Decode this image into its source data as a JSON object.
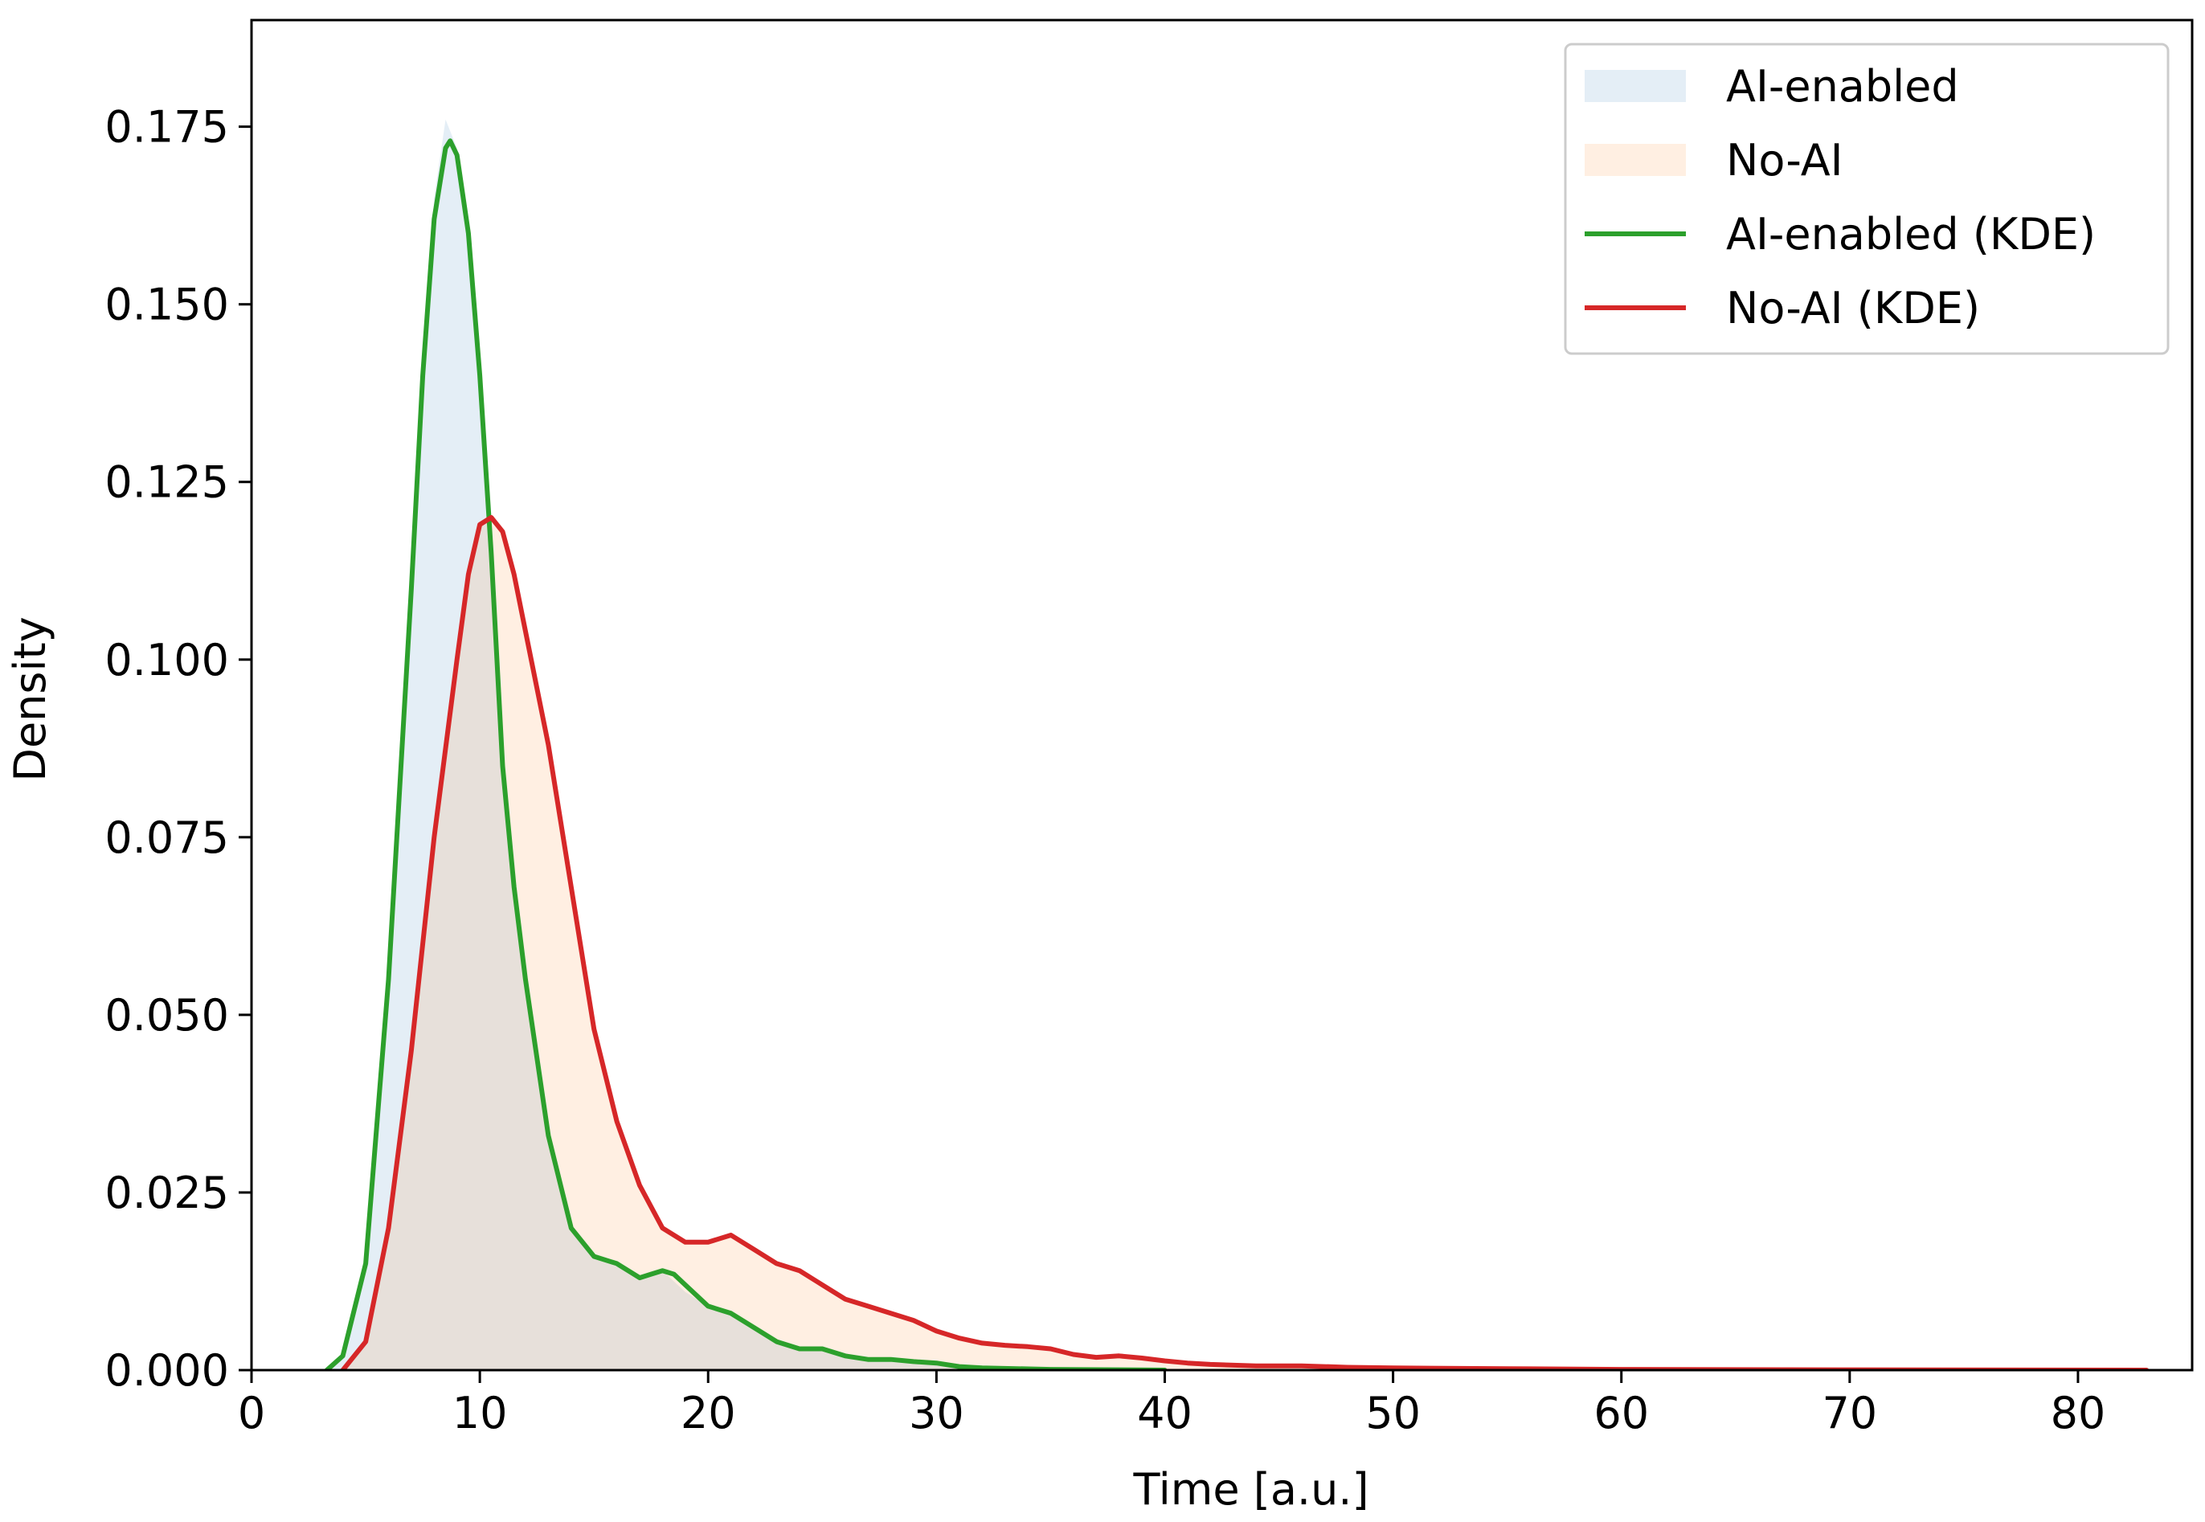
{
  "chart_data": {
    "type": "area",
    "xlabel": "Time [a.u.]",
    "ylabel": "Density",
    "xlim": [
      0,
      85
    ],
    "ylim": [
      0,
      0.19
    ],
    "xticks": [
      0,
      10,
      20,
      30,
      40,
      50,
      60,
      70,
      80
    ],
    "xtick_labels": [
      "0",
      "10",
      "20",
      "30",
      "40",
      "50",
      "60",
      "70",
      "80"
    ],
    "yticks": [
      0,
      0.025,
      0.05,
      0.075,
      0.1,
      0.125,
      0.15,
      0.175
    ],
    "ytick_labels": [
      "0.000",
      "0.025",
      "0.050",
      "0.075",
      "0.100",
      "0.125",
      "0.150",
      "0.175"
    ],
    "grid": false,
    "legend_position": "top-right",
    "series": [
      {
        "name": "AI-enabled",
        "kind": "histogram",
        "color": "#1f77b4",
        "x": [
          3.5,
          4,
          5,
          6,
          7,
          7.5,
          8,
          8.5,
          9,
          9.5,
          10,
          10.5,
          11,
          12,
          13,
          14,
          15,
          16,
          17,
          18,
          19,
          20,
          21,
          22,
          23,
          24,
          25,
          26,
          27,
          28,
          29,
          30,
          31,
          32,
          35,
          40
        ],
        "y": [
          0,
          0.002,
          0.015,
          0.055,
          0.11,
          0.14,
          0.165,
          0.176,
          0.172,
          0.16,
          0.14,
          0.115,
          0.085,
          0.055,
          0.033,
          0.02,
          0.016,
          0.015,
          0.013,
          0.014,
          0.011,
          0.009,
          0.008,
          0.006,
          0.004,
          0.003,
          0.003,
          0.002,
          0.0015,
          0.0015,
          0.0012,
          0.001,
          0.0005,
          0.0003,
          0.0001,
          0
        ]
      },
      {
        "name": "No-AI",
        "kind": "histogram",
        "color": "#ff7f0e",
        "x": [
          4,
          5,
          6,
          7,
          8,
          9,
          9.5,
          10,
          10.5,
          11,
          11.5,
          12,
          13,
          14,
          15,
          16,
          17,
          18,
          19,
          20,
          21,
          22,
          23,
          24,
          25,
          26,
          27,
          28,
          29,
          30,
          31,
          32,
          33,
          34,
          35,
          36,
          37,
          38,
          39,
          40,
          41,
          42,
          44,
          46,
          48,
          50,
          55,
          60,
          70,
          83
        ],
        "y": [
          0,
          0.004,
          0.02,
          0.045,
          0.075,
          0.1,
          0.112,
          0.119,
          0.12,
          0.118,
          0.112,
          0.104,
          0.088,
          0.068,
          0.048,
          0.035,
          0.026,
          0.02,
          0.018,
          0.018,
          0.019,
          0.017,
          0.015,
          0.014,
          0.012,
          0.01,
          0.009,
          0.008,
          0.007,
          0.0055,
          0.0045,
          0.0038,
          0.0035,
          0.0033,
          0.003,
          0.0022,
          0.0018,
          0.002,
          0.0017,
          0.0013,
          0.001,
          0.0008,
          0.0006,
          0.0006,
          0.0004,
          0.0003,
          0.0002,
          0.0001,
          5e-05,
          0
        ]
      },
      {
        "name": "AI-enabled (KDE)",
        "kind": "line",
        "color": "#2ca02c",
        "x": [
          3.3,
          4,
          5,
          6,
          7,
          7.5,
          8,
          8.5,
          8.7,
          9,
          9.5,
          10,
          10.5,
          11,
          11.5,
          12,
          13,
          14,
          15,
          16,
          17,
          17.5,
          18,
          18.5,
          19,
          20,
          21,
          22,
          23,
          24,
          25,
          26,
          27,
          28,
          29,
          30,
          31,
          32,
          35,
          40
        ],
        "y": [
          0,
          0.002,
          0.015,
          0.055,
          0.11,
          0.14,
          0.162,
          0.172,
          0.173,
          0.171,
          0.16,
          0.14,
          0.115,
          0.085,
          0.068,
          0.055,
          0.033,
          0.02,
          0.016,
          0.015,
          0.013,
          0.0135,
          0.014,
          0.0135,
          0.012,
          0.009,
          0.008,
          0.006,
          0.004,
          0.003,
          0.003,
          0.002,
          0.0015,
          0.0015,
          0.0012,
          0.001,
          0.0005,
          0.0003,
          0.0001,
          0
        ]
      },
      {
        "name": "No-AI (KDE)",
        "kind": "line",
        "color": "#d62728",
        "x": [
          4,
          5,
          6,
          7,
          8,
          9,
          9.5,
          10,
          10.5,
          11,
          11.5,
          12,
          13,
          14,
          15,
          16,
          17,
          18,
          19,
          20,
          21,
          22,
          23,
          24,
          25,
          26,
          27,
          28,
          29,
          30,
          31,
          32,
          33,
          34,
          35,
          36,
          37,
          38,
          39,
          40,
          41,
          42,
          44,
          46,
          48,
          50,
          55,
          60,
          70,
          83
        ],
        "y": [
          0,
          0.004,
          0.02,
          0.045,
          0.075,
          0.1,
          0.112,
          0.119,
          0.12,
          0.118,
          0.112,
          0.104,
          0.088,
          0.068,
          0.048,
          0.035,
          0.026,
          0.02,
          0.018,
          0.018,
          0.019,
          0.017,
          0.015,
          0.014,
          0.012,
          0.01,
          0.009,
          0.008,
          0.007,
          0.0055,
          0.0045,
          0.0038,
          0.0035,
          0.0033,
          0.003,
          0.0022,
          0.0018,
          0.002,
          0.0017,
          0.0013,
          0.001,
          0.0008,
          0.0006,
          0.0006,
          0.0004,
          0.0003,
          0.0002,
          0.0001,
          5e-05,
          0
        ]
      }
    ]
  }
}
